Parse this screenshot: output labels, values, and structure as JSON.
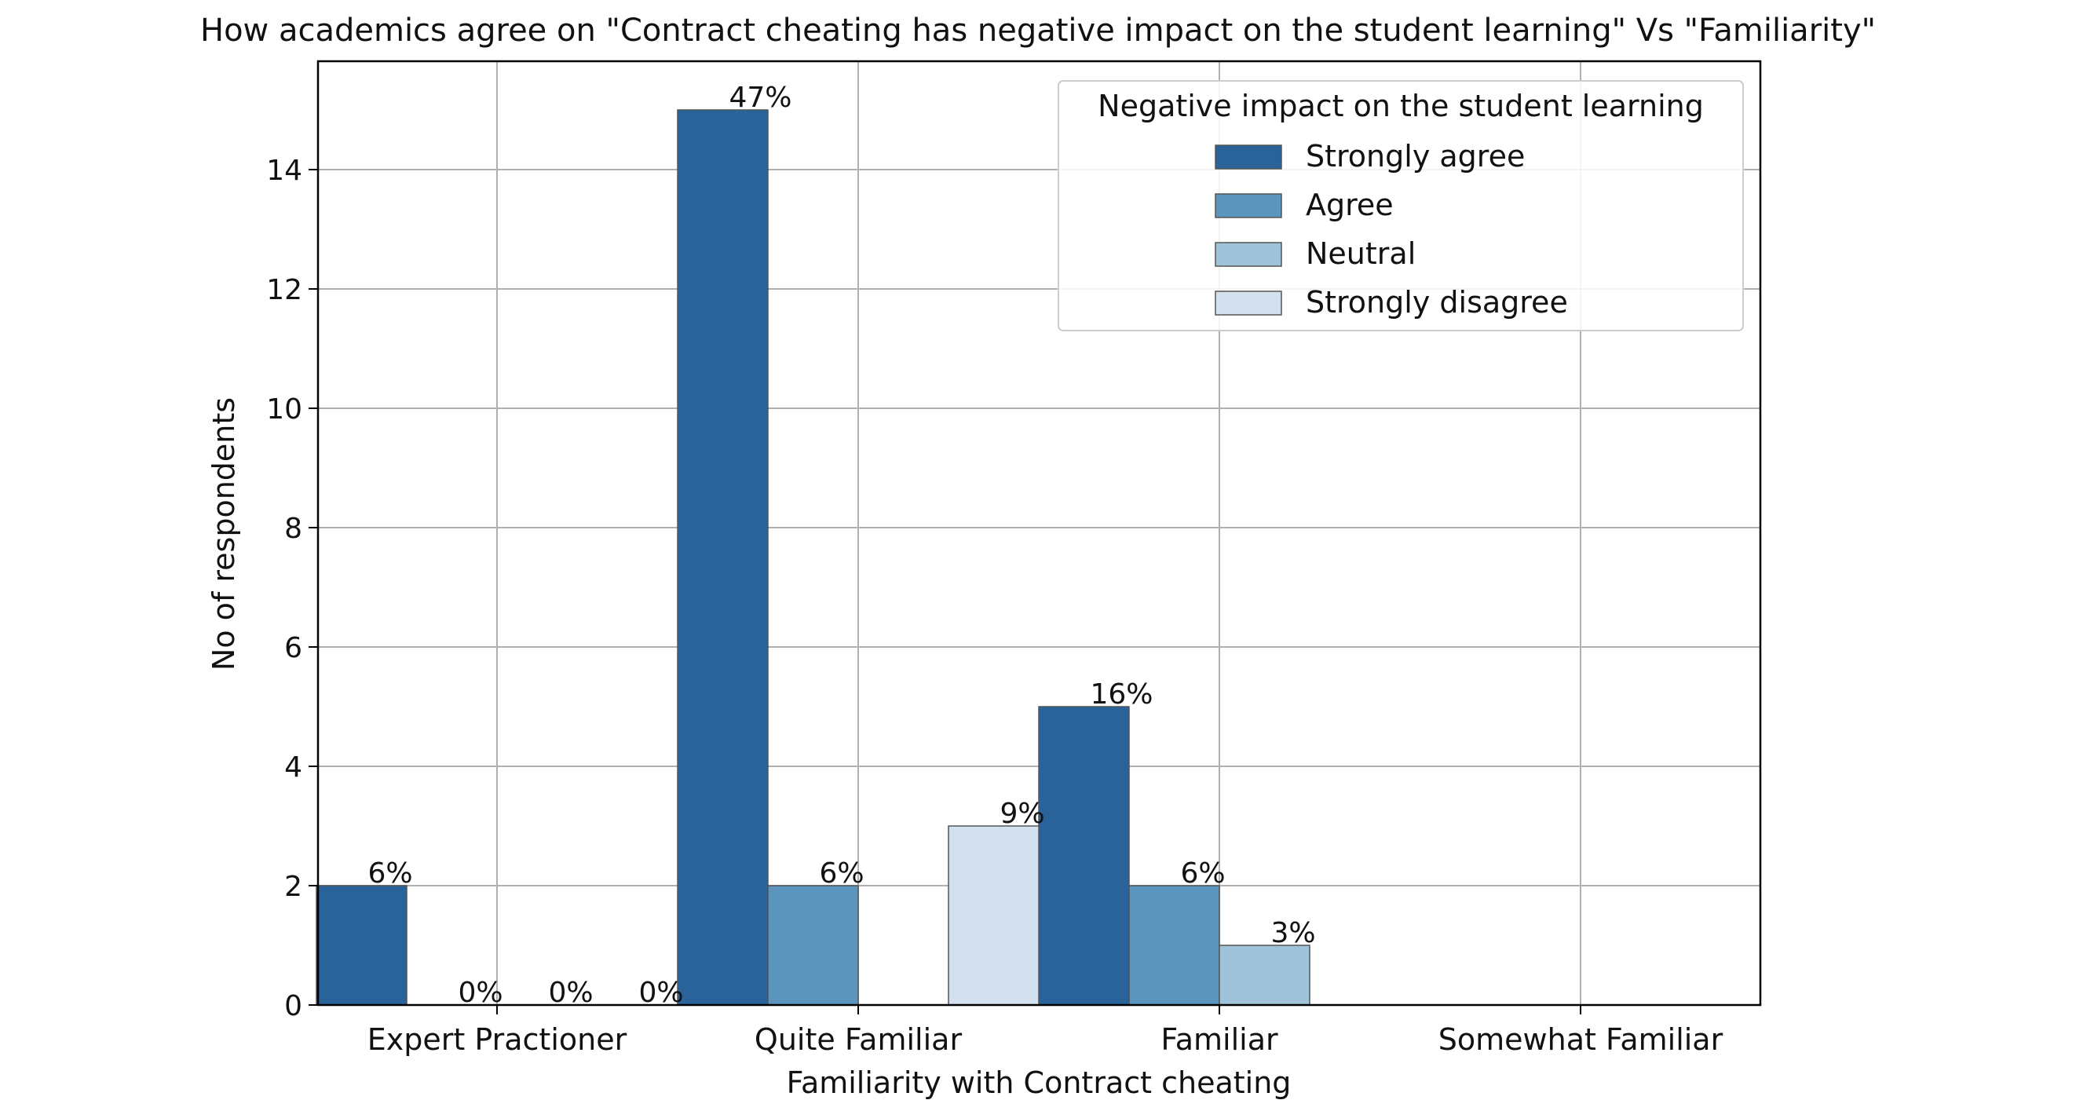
{
  "chart_data": {
    "type": "bar",
    "title": "How academics agree on \"Contract cheating has negative impact on the student learning\" Vs \"Familiarity\"",
    "xlabel": "Familiarity with Contract cheating",
    "ylabel": "No of respondents",
    "ylim": [
      0,
      15.75
    ],
    "yticks": [
      0,
      2,
      4,
      6,
      8,
      10,
      12,
      14
    ],
    "grid": true,
    "categories": [
      "Expert Practioner",
      "Quite Familiar",
      "Familiar",
      "Somewhat Familiar"
    ],
    "legend": {
      "title": "Negative impact on the student learning",
      "placement": "top-right"
    },
    "series": [
      {
        "name": "Strongly agree",
        "color": "#2a6399",
        "values": [
          2,
          15,
          5,
          0
        ],
        "labels": [
          "6%",
          "47%",
          "16%",
          ""
        ]
      },
      {
        "name": "Agree",
        "color": "#5b95bd",
        "values": [
          0,
          2,
          2,
          0
        ],
        "labels": [
          "0%",
          "6%",
          "6%",
          ""
        ]
      },
      {
        "name": "Neutral",
        "color": "#9fc4da",
        "values": [
          0,
          0,
          1,
          0
        ],
        "labels": [
          "0%",
          "",
          "3%",
          ""
        ]
      },
      {
        "name": "Strongly disagree",
        "color": "#d3e1ee",
        "values": [
          0,
          3,
          0,
          0
        ],
        "labels": [
          "0%",
          "9%",
          "",
          ""
        ]
      }
    ]
  }
}
